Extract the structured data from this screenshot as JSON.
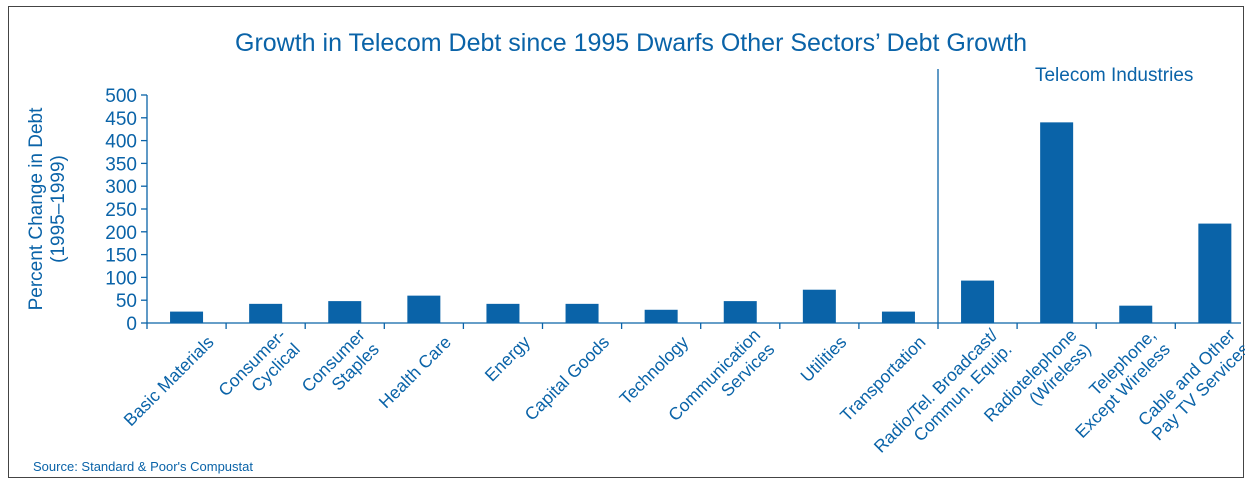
{
  "chart_data": {
    "type": "bar",
    "title": "Growth in Telecom Debt since 1995 Dwarfs Other Sectors’ Debt Growth",
    "ylabel": [
      "Percent Change in Debt",
      "(1995–1999)"
    ],
    "xlabel": "",
    "ylim": [
      0,
      500
    ],
    "yticks": [
      0,
      50,
      100,
      150,
      200,
      250,
      300,
      350,
      400,
      450,
      500
    ],
    "grid": false,
    "bar_color": "#0a63a8",
    "text_color": "#0a63a8",
    "categories": [
      [
        "Basic Materials"
      ],
      [
        "Consumer-",
        "Cyclical"
      ],
      [
        "Consumer",
        "Staples"
      ],
      [
        "Health Care"
      ],
      [
        "Energy"
      ],
      [
        "Capital Goods"
      ],
      [
        "Technology"
      ],
      [
        "Communication",
        "Services"
      ],
      [
        "Utilities"
      ],
      [
        "Transportation"
      ],
      [
        "Radio/Tel. Broadcast/",
        "Commun. Equip."
      ],
      [
        "Radiotelephone",
        "(Wireless)"
      ],
      [
        "Telephone,",
        "Except Wireless"
      ],
      [
        "Cable and Other",
        "Pay TV Services"
      ]
    ],
    "values": [
      25,
      42,
      48,
      60,
      42,
      42,
      29,
      48,
      73,
      25,
      93,
      440,
      38,
      218
    ],
    "annotation": "Telecom Industries",
    "divider_after_index": 9,
    "source": "Source: Standard & Poor's Compustat"
  }
}
